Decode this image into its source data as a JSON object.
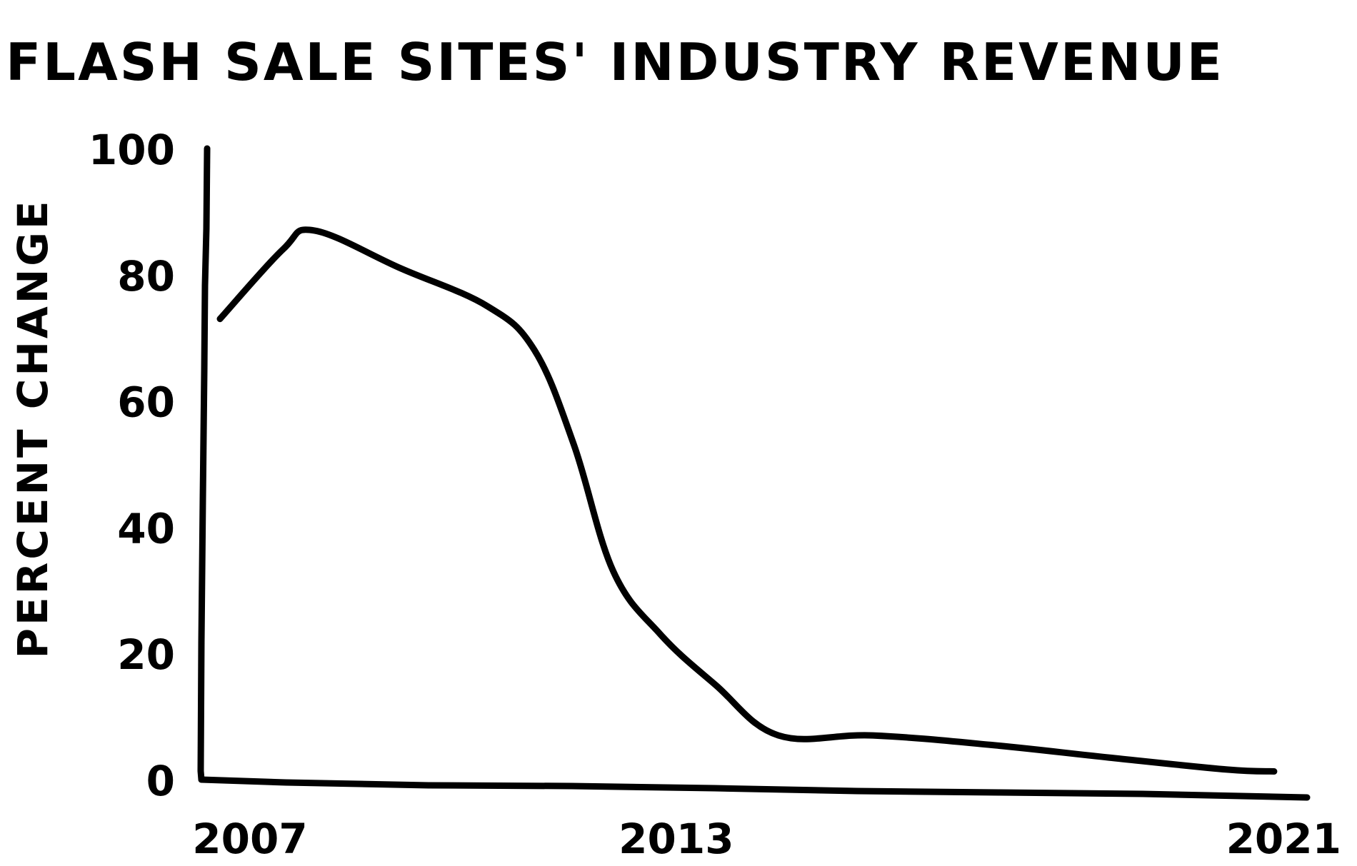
{
  "chart_data": {
    "type": "line",
    "title": "FLASH SALE SITES' INDUSTRY REVENUE",
    "xlabel": "",
    "ylabel": "PERCENT CHANGE",
    "x_ticks": [
      "2007",
      "2013",
      "2021"
    ],
    "y_ticks": [
      0,
      20,
      40,
      60,
      80,
      100
    ],
    "xlim": [
      2007,
      2021
    ],
    "ylim": [
      0,
      100
    ],
    "grid": false,
    "legend": "none",
    "series": [
      {
        "x": [
          2007.2,
          2008.0,
          2008.4,
          2009.5,
          2010.6,
          2011.2,
          2011.7,
          2012.2,
          2012.8,
          2013.5,
          2014.3,
          2015.5,
          2017.0,
          2018.5,
          2020.0,
          2020.6
        ],
        "y": [
          73,
          84,
          87,
          81,
          75,
          68,
          53,
          33,
          23,
          15,
          7,
          7,
          5.5,
          3.5,
          1.6,
          1.3
        ]
      }
    ],
    "line_color": "#000000"
  }
}
